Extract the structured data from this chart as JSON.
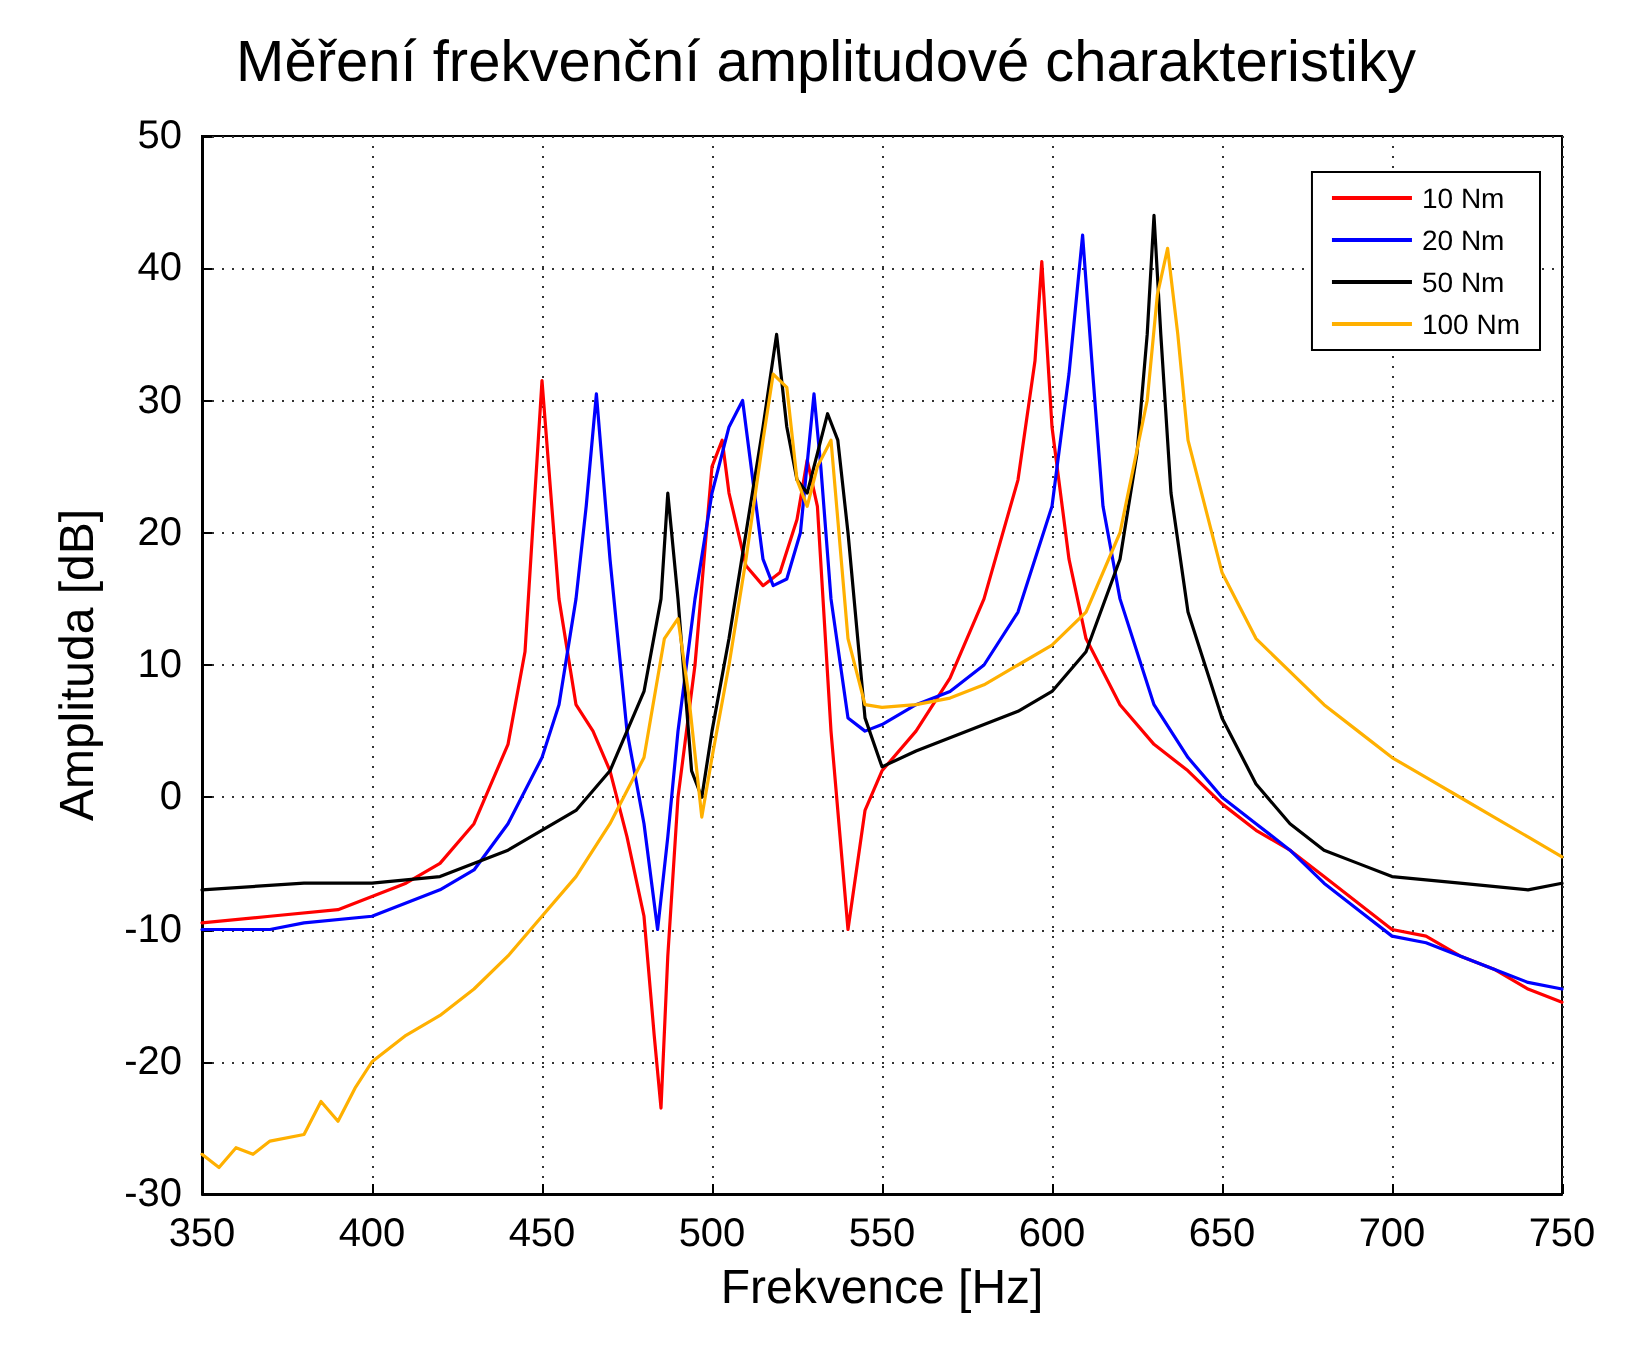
{
  "chart_data": {
    "type": "line",
    "title": "Měření frekvenční amplitudové charakteristiky",
    "xlabel": "Frekvence [Hz]",
    "ylabel": "Amplituda [dB]",
    "xlim": [
      350,
      750
    ],
    "xticks": [
      350,
      400,
      450,
      500,
      550,
      600,
      650,
      700,
      750
    ],
    "ylim": [
      -30,
      50
    ],
    "yticks": [
      -30,
      -20,
      -10,
      0,
      10,
      20,
      30,
      40,
      50
    ],
    "grid": true,
    "legend": "top right",
    "line_style": "solid",
    "marker": "none",
    "series": [
      {
        "name": "10 Nm",
        "color": "#ff0000",
        "x": [
          350,
          370,
          390,
          400,
          410,
          420,
          430,
          440,
          445,
          450,
          455,
          460,
          465,
          470,
          475,
          480,
          483,
          485,
          487,
          490,
          495,
          500,
          503,
          505,
          510,
          515,
          520,
          525,
          528,
          531,
          535,
          540,
          545,
          550,
          560,
          570,
          580,
          590,
          595,
          597,
          600,
          605,
          610,
          620,
          630,
          640,
          650,
          660,
          670,
          680,
          690,
          700,
          710,
          720,
          730,
          740,
          750
        ],
        "values": [
          -9.5,
          -9,
          -8.5,
          -7.5,
          -6.5,
          -5,
          -2,
          4,
          11,
          31.5,
          15,
          7,
          5,
          2,
          -3,
          -9,
          -18,
          -23.5,
          -12,
          0,
          10,
          25,
          27,
          23,
          17.5,
          16,
          17,
          21,
          25.5,
          22,
          5,
          -10,
          -1,
          2,
          5,
          9,
          15,
          24,
          33,
          40.5,
          28,
          18,
          12,
          7,
          4,
          2,
          -0.5,
          -2.5,
          -4,
          -6,
          -8,
          -10,
          -10.5,
          -12,
          -13,
          -14.5,
          -15.5
        ]
      },
      {
        "name": "20 Nm",
        "color": "#0000ff",
        "x": [
          350,
          370,
          380,
          400,
          420,
          430,
          440,
          450,
          455,
          460,
          463,
          466,
          470,
          475,
          480,
          484,
          487,
          490,
          495,
          500,
          505,
          509,
          512,
          515,
          518,
          522,
          526,
          530,
          532,
          535,
          540,
          545,
          550,
          560,
          570,
          580,
          590,
          600,
          605,
          609,
          612,
          615,
          620,
          630,
          640,
          650,
          660,
          670,
          680,
          690,
          700,
          710,
          720,
          730,
          740,
          750
        ],
        "values": [
          -10,
          -10,
          -9.5,
          -9,
          -7,
          -5.5,
          -2,
          3,
          7,
          15,
          22,
          30.5,
          18,
          5,
          -2,
          -10,
          -3,
          5,
          15,
          23,
          28,
          30,
          24,
          18,
          16,
          16.5,
          20,
          30.5,
          25,
          15,
          6,
          5,
          5.5,
          7,
          8,
          10,
          14,
          22,
          32,
          42.5,
          32,
          22,
          15,
          7,
          3,
          0,
          -2,
          -4,
          -6.5,
          -8.5,
          -10.5,
          -11,
          -12,
          -13,
          -14,
          -14.5
        ]
      },
      {
        "name": "50 Nm",
        "color": "#000000",
        "x": [
          350,
          380,
          400,
          420,
          440,
          460,
          470,
          480,
          485,
          487,
          490,
          494,
          497,
          500,
          505,
          510,
          515,
          519,
          522,
          525,
          528,
          531,
          534,
          537,
          540,
          545,
          550,
          560,
          570,
          580,
          590,
          600,
          610,
          620,
          625,
          628,
          630,
          632,
          635,
          640,
          650,
          660,
          670,
          680,
          690,
          700,
          720,
          740,
          750
        ],
        "values": [
          -7,
          -6.5,
          -6.5,
          -6,
          -4,
          -1,
          2,
          8,
          15,
          23,
          15,
          2,
          0,
          5,
          12,
          20,
          28,
          35,
          28,
          24,
          23,
          26,
          29,
          27,
          20,
          6,
          2.3,
          3.5,
          4.5,
          5.5,
          6.5,
          8,
          11,
          18,
          26,
          35,
          44,
          35,
          23,
          14,
          6,
          1,
          -2,
          -4,
          -5,
          -6,
          -6.5,
          -7,
          -6.5
        ]
      },
      {
        "name": "100 Nm",
        "color": "#ffb000",
        "x": [
          350,
          355,
          360,
          365,
          370,
          380,
          385,
          390,
          395,
          400,
          410,
          420,
          430,
          440,
          450,
          460,
          470,
          480,
          486,
          490,
          493,
          497,
          500,
          505,
          510,
          515,
          518,
          522,
          525,
          528,
          531,
          535,
          540,
          545,
          550,
          560,
          570,
          580,
          590,
          600,
          610,
          620,
          628,
          631,
          634,
          637,
          640,
          650,
          660,
          670,
          680,
          690,
          700,
          710,
          720,
          730,
          740,
          750
        ],
        "values": [
          -27,
          -28,
          -26.5,
          -27,
          -26,
          -25.5,
          -23,
          -24.5,
          -22,
          -20,
          -18,
          -16.5,
          -14.5,
          -12,
          -9,
          -6,
          -2,
          3,
          12,
          13.5,
          8,
          -1.5,
          3,
          10,
          18,
          27,
          32,
          31,
          24,
          22,
          25,
          27,
          12,
          7,
          6.8,
          7,
          7.5,
          8.5,
          10,
          11.5,
          14,
          20,
          30,
          38,
          41.5,
          35,
          27,
          17,
          12,
          9.5,
          7,
          5,
          3,
          1.5,
          0,
          -1.5,
          -3,
          -4.5
        ]
      }
    ]
  }
}
